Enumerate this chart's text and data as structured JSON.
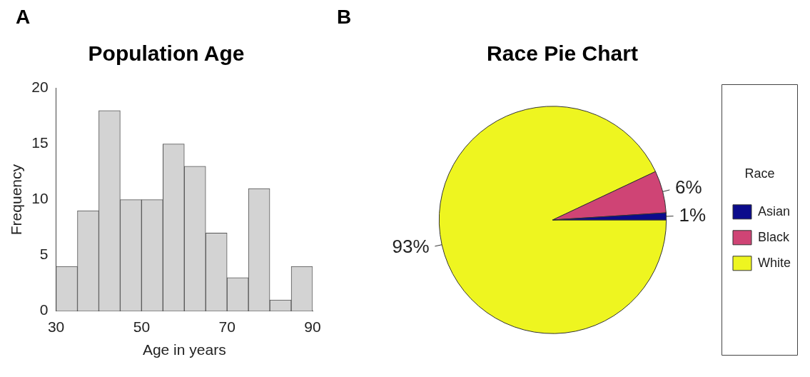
{
  "chart_data": [
    {
      "type": "histogram",
      "title": "Population Age",
      "xlabel": "Age in years",
      "ylabel": "Frequency",
      "annotations": [
        "A"
      ],
      "bins": [
        30,
        35,
        40,
        45,
        50,
        55,
        60,
        65,
        70,
        75,
        80,
        85,
        90
      ],
      "values": [
        4,
        9,
        18,
        10,
        10,
        15,
        13,
        7,
        3,
        11,
        1,
        4
      ],
      "color": "#d3d3d3",
      "xlim": [
        30,
        90
      ],
      "xticks": [
        30,
        50,
        70,
        90
      ],
      "ylim": [
        0,
        20
      ],
      "yticks": [
        0,
        5,
        10,
        15,
        20
      ]
    },
    {
      "type": "pie",
      "title": "Race Pie Chart",
      "annotations": [
        "B"
      ],
      "legend_title": "Race",
      "legend": "right",
      "categories": [
        "Asian",
        "Black",
        "White"
      ],
      "values": [
        1,
        6,
        93
      ],
      "value_labels": [
        "1%",
        "6%",
        "93%"
      ],
      "colors": [
        "#0b0b8c",
        "#cf4475",
        "#eef520"
      ]
    }
  ]
}
